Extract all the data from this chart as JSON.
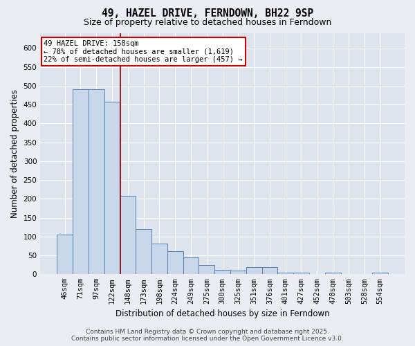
{
  "title_line1": "49, HAZEL DRIVE, FERNDOWN, BH22 9SP",
  "title_line2": "Size of property relative to detached houses in Ferndown",
  "xlabel": "Distribution of detached houses by size in Ferndown",
  "ylabel": "Number of detached properties",
  "footer_line1": "Contains HM Land Registry data © Crown copyright and database right 2025.",
  "footer_line2": "Contains public sector information licensed under the Open Government Licence v3.0.",
  "annotation_line1": "49 HAZEL DRIVE: 158sqm",
  "annotation_line2": "← 78% of detached houses are smaller (1,619)",
  "annotation_line3": "22% of semi-detached houses are larger (457) →",
  "bar_labels": [
    "46sqm",
    "71sqm",
    "97sqm",
    "122sqm",
    "148sqm",
    "173sqm",
    "198sqm",
    "224sqm",
    "249sqm",
    "275sqm",
    "300sqm",
    "325sqm",
    "351sqm",
    "376sqm",
    "401sqm",
    "427sqm",
    "452sqm",
    "478sqm",
    "503sqm",
    "528sqm",
    "554sqm"
  ],
  "bar_values": [
    105,
    490,
    490,
    458,
    207,
    120,
    82,
    62,
    45,
    25,
    12,
    10,
    18,
    18,
    5,
    5,
    0,
    5,
    0,
    0,
    5
  ],
  "bar_color": "#c8d8ea",
  "bar_edge_color": "#5580b0",
  "red_line_x": 3.55,
  "ylim": [
    0,
    640
  ],
  "yticks": [
    0,
    50,
    100,
    150,
    200,
    250,
    300,
    350,
    400,
    450,
    500,
    550,
    600
  ],
  "background_color": "#eaeef3",
  "plot_background": "#dde4ed",
  "grid_color": "#ffffff",
  "title_fontsize": 10.5,
  "subtitle_fontsize": 9,
  "axis_label_fontsize": 8.5,
  "tick_fontsize": 7.5,
  "annotation_fontsize": 7.5,
  "footer_fontsize": 6.5
}
